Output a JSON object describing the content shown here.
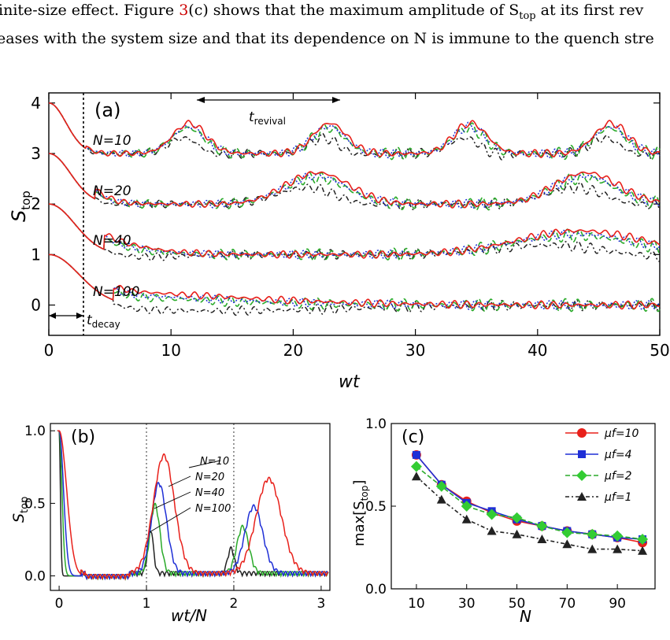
{
  "caption": {
    "line1_a": "inite-size effect. Figure ",
    "line1_ref": "3",
    "line1_b": "(c) shows that the maximum amplitude of S",
    "line1_sub": "top",
    "line1_c": " at its first rev",
    "line2": "eases with the system size and that its dependence on N is immune to the quench stre"
  },
  "panel_a": {
    "label": "(a)",
    "xlabel": "wt",
    "ylabel": "S",
    "ylabel_sub": "top",
    "revival_label": "t",
    "revival_sub": "revival",
    "decay_label": "t",
    "decay_sub": "decay",
    "annotations": [
      "N=10",
      "N=20",
      "N=40",
      "N=100"
    ]
  },
  "panel_b": {
    "label": "(b)",
    "xlabel": "wt/N",
    "ylabel": "S",
    "ylabel_sub": "top",
    "arrow_labels": [
      "N=10",
      "N=20",
      "N=40",
      "N=100"
    ]
  },
  "panel_c": {
    "label": "(c)",
    "xlabel": "N",
    "ylabel": "max[S",
    "ylabel_sub": "top",
    "ylabel_end": "]"
  },
  "colors": {
    "red": "#e8201a",
    "blue": "#1f2fd6",
    "green": "#2aaa2a",
    "black": "#222222",
    "green_marker": "#33cc33"
  },
  "chart_data": [
    {
      "type": "line",
      "title": "(a)",
      "xlabel": "wt",
      "ylabel": "S_top",
      "xlim": [
        0,
        50
      ],
      "ylim": [
        -0.6,
        4.2
      ],
      "xticks": [
        0,
        10,
        20,
        30,
        40,
        50
      ],
      "yticks": [
        0,
        1,
        2,
        3,
        4
      ],
      "vline": 3.2,
      "series_groups": [
        {
          "name": "N=10",
          "offset": 3,
          "decay": 2,
          "period": 11.5,
          "amp": 0.6
        },
        {
          "name": "N=20",
          "offset": 2,
          "decay": 2.5,
          "period": 22,
          "amp": 0.62
        },
        {
          "name": "N=40",
          "offset": 1,
          "decay": 3,
          "period": 43.5,
          "amp": 0.47
        },
        {
          "name": "N=100",
          "offset": 0,
          "decay": 3.5,
          "period": 110,
          "amp": 0.3
        }
      ]
    },
    {
      "type": "line",
      "title": "(b)",
      "xlabel": "wt/N",
      "ylabel": "S_top",
      "xlim": [
        -0.1,
        3.1
      ],
      "ylim": [
        -0.1,
        1.05
      ],
      "xticks": [
        0,
        1,
        2,
        3
      ],
      "yticks": [
        0.0,
        0.5,
        1.0
      ],
      "vlines": [
        1,
        2
      ],
      "series": [
        {
          "name": "N=10",
          "color": "red",
          "peaks": [
            0.81,
            0.65
          ]
        },
        {
          "name": "N=20",
          "color": "blue",
          "peaks": [
            0.62,
            0.46
          ]
        },
        {
          "name": "N=40",
          "color": "green",
          "peaks": [
            0.47,
            0.32
          ]
        },
        {
          "name": "N=100",
          "color": "black",
          "peaks": [
            0.3,
            0.17
          ]
        }
      ]
    },
    {
      "type": "line",
      "title": "(c)",
      "xlabel": "N",
      "ylabel": "max[S_top]",
      "xlim": [
        0,
        105
      ],
      "ylim": [
        0,
        1.0
      ],
      "xticks": [
        10,
        30,
        50,
        70,
        90
      ],
      "yticks": [
        0.0,
        0.5,
        1.0
      ],
      "x": [
        10,
        20,
        30,
        40,
        50,
        60,
        70,
        80,
        90,
        100
      ],
      "series": [
        {
          "name": "μf=10",
          "color": "red",
          "marker": "circle",
          "values": [
            0.81,
            0.63,
            0.53,
            0.46,
            0.41,
            0.38,
            0.35,
            0.33,
            0.31,
            0.28
          ]
        },
        {
          "name": "μf=4",
          "color": "blue",
          "marker": "square",
          "values": [
            0.81,
            0.63,
            0.52,
            0.47,
            0.42,
            0.38,
            0.35,
            0.33,
            0.31,
            0.3
          ]
        },
        {
          "name": "μf=2",
          "color": "green",
          "marker": "diamond",
          "values": [
            0.74,
            0.62,
            0.5,
            0.45,
            0.43,
            0.38,
            0.34,
            0.33,
            0.32,
            0.3
          ]
        },
        {
          "name": "μf=1",
          "color": "black",
          "marker": "triangle",
          "values": [
            0.68,
            0.54,
            0.42,
            0.35,
            0.33,
            0.3,
            0.27,
            0.24,
            0.24,
            0.23
          ]
        }
      ],
      "legend": [
        "μf=10",
        "μf=4",
        "μf=2",
        "μf=1"
      ],
      "legend_position": "top-right"
    }
  ]
}
